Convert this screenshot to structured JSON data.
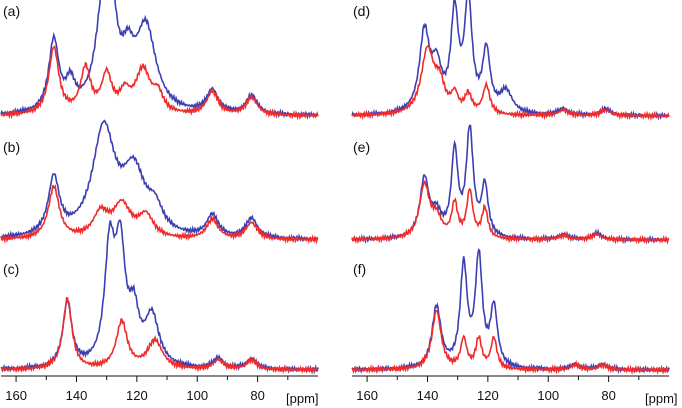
{
  "colors": {
    "blue": "#3b3fb3",
    "red": "#ef2b2b"
  },
  "chart_data": [
    {
      "type": "line",
      "panel": "(a)",
      "column": "left",
      "xlim": [
        165,
        60
      ],
      "series": [
        {
          "color": "blue",
          "peaks": [
            [
              147.5,
              0.62,
              2.0
            ],
            [
              142,
              0.22,
              1.8
            ],
            [
              131,
              0.95,
              3.0
            ],
            [
              128,
              0.5,
              2.0
            ],
            [
              117,
              0.72,
              4.0
            ],
            [
              123,
              0.35,
              2.5
            ],
            [
              95,
              0.2,
              2.3
            ],
            [
              82,
              0.16,
              2.3
            ]
          ]
        },
        {
          "color": "red",
          "peaks": [
            [
              147.5,
              0.58,
              2.0
            ],
            [
              137,
              0.39,
              2.0
            ],
            [
              130,
              0.33,
              2.0
            ],
            [
              124,
              0.16,
              2.0
            ],
            [
              118,
              0.38,
              3.0
            ],
            [
              113,
              0.15,
              2.0
            ],
            [
              95,
              0.2,
              2.3
            ],
            [
              82,
              0.15,
              2.3
            ]
          ]
        }
      ]
    },
    {
      "type": "line",
      "panel": "(b)",
      "column": "left",
      "xlim": [
        165,
        60
      ],
      "series": [
        {
          "color": "blue",
          "peaks": [
            [
              147.5,
              0.52,
              2.2
            ],
            [
              131,
              0.97,
              4.5
            ],
            [
              121,
              0.55,
              4.5
            ],
            [
              114,
              0.2,
              3.0
            ],
            [
              95,
              0.2,
              2.3
            ],
            [
              82,
              0.18,
              2.3
            ]
          ]
        },
        {
          "color": "red",
          "peaks": [
            [
              147.5,
              0.47,
              2.2
            ],
            [
              132,
              0.22,
              3.0
            ],
            [
              125,
              0.3,
              3.5
            ],
            [
              117,
              0.2,
              3.0
            ],
            [
              95,
              0.18,
              2.3
            ],
            [
              82,
              0.15,
              2.3
            ]
          ]
        }
      ]
    },
    {
      "type": "line",
      "panel": "(c)",
      "column": "left",
      "xlim": [
        165,
        60
      ],
      "series": [
        {
          "color": "blue",
          "peaks": [
            [
              143,
              0.55,
              1.8
            ],
            [
              129,
              0.96,
              2.0
            ],
            [
              125.5,
              0.93,
              2.0
            ],
            [
              121,
              0.4,
              2.0
            ],
            [
              115,
              0.42,
              2.8
            ],
            [
              93,
              0.09,
              2.0
            ],
            [
              82,
              0.09,
              2.0
            ]
          ]
        },
        {
          "color": "red",
          "peaks": [
            [
              143,
              0.6,
              1.8
            ],
            [
              125,
              0.4,
              2.2
            ],
            [
              114,
              0.24,
              3.0
            ],
            [
              93,
              0.08,
              2.0
            ],
            [
              82,
              0.08,
              2.0
            ]
          ]
        }
      ]
    },
    {
      "type": "line",
      "panel": "(d)",
      "column": "right",
      "xlim": [
        165,
        60
      ],
      "series": [
        {
          "color": "blue",
          "peaks": [
            [
              141,
              0.72,
              2.0
            ],
            [
              137,
              0.38,
              2.0
            ],
            [
              131,
              0.88,
              1.5
            ],
            [
              126.5,
              1.0,
              1.5
            ],
            [
              120.5,
              0.55,
              1.5
            ],
            [
              114,
              0.2,
              2.5
            ],
            [
              95,
              0.06,
              2.0
            ],
            [
              81,
              0.06,
              2.0
            ]
          ]
        },
        {
          "color": "red",
          "peaks": [
            [
              140,
              0.58,
              2.5
            ],
            [
              136,
              0.25,
              2.0
            ],
            [
              131,
              0.16,
              1.4
            ],
            [
              126.5,
              0.17,
              1.4
            ],
            [
              120.5,
              0.26,
              1.4
            ],
            [
              95,
              0.05,
              2.0
            ],
            [
              81,
              0.05,
              2.0
            ]
          ]
        }
      ]
    },
    {
      "type": "line",
      "panel": "(e)",
      "column": "right",
      "xlim": [
        165,
        60
      ],
      "series": [
        {
          "color": "blue",
          "peaks": [
            [
              141,
              0.55,
              1.8
            ],
            [
              137,
              0.2,
              2.0
            ],
            [
              131,
              0.8,
              1.3
            ],
            [
              126,
              1.0,
              1.4
            ],
            [
              121,
              0.48,
              1.3
            ],
            [
              95,
              0.05,
              2.0
            ],
            [
              84,
              0.06,
              2.0
            ]
          ]
        },
        {
          "color": "red",
          "peaks": [
            [
              141,
              0.5,
              2.0
            ],
            [
              137,
              0.18,
              2.0
            ],
            [
              131,
              0.32,
              1.2
            ],
            [
              126,
              0.44,
              1.2
            ],
            [
              121,
              0.28,
              1.2
            ],
            [
              95,
              0.04,
              2.0
            ],
            [
              84,
              0.05,
              2.0
            ]
          ]
        }
      ]
    },
    {
      "type": "line",
      "panel": "(f)",
      "column": "right",
      "xlim": [
        165,
        60
      ],
      "series": [
        {
          "color": "blue",
          "peaks": [
            [
              137,
              0.52,
              1.8
            ],
            [
              128,
              0.85,
              1.4
            ],
            [
              123,
              0.92,
              1.4
            ],
            [
              118,
              0.5,
              1.4
            ],
            [
              91,
              0.05,
              1.8
            ],
            [
              82,
              0.05,
              1.8
            ]
          ]
        },
        {
          "color": "red",
          "peaks": [
            [
              137,
              0.5,
              1.8
            ],
            [
              128,
              0.25,
              1.2
            ],
            [
              123,
              0.25,
              1.2
            ],
            [
              118,
              0.26,
              1.2
            ],
            [
              91,
              0.04,
              1.8
            ],
            [
              82,
              0.04,
              1.8
            ]
          ]
        }
      ]
    }
  ],
  "axes": {
    "left": {
      "ticks": [
        160,
        140,
        120,
        100,
        80
      ],
      "unit": "[ppm]"
    },
    "right": {
      "ticks": [
        160,
        140,
        120,
        100,
        80
      ],
      "unit": "[ppm]"
    }
  }
}
